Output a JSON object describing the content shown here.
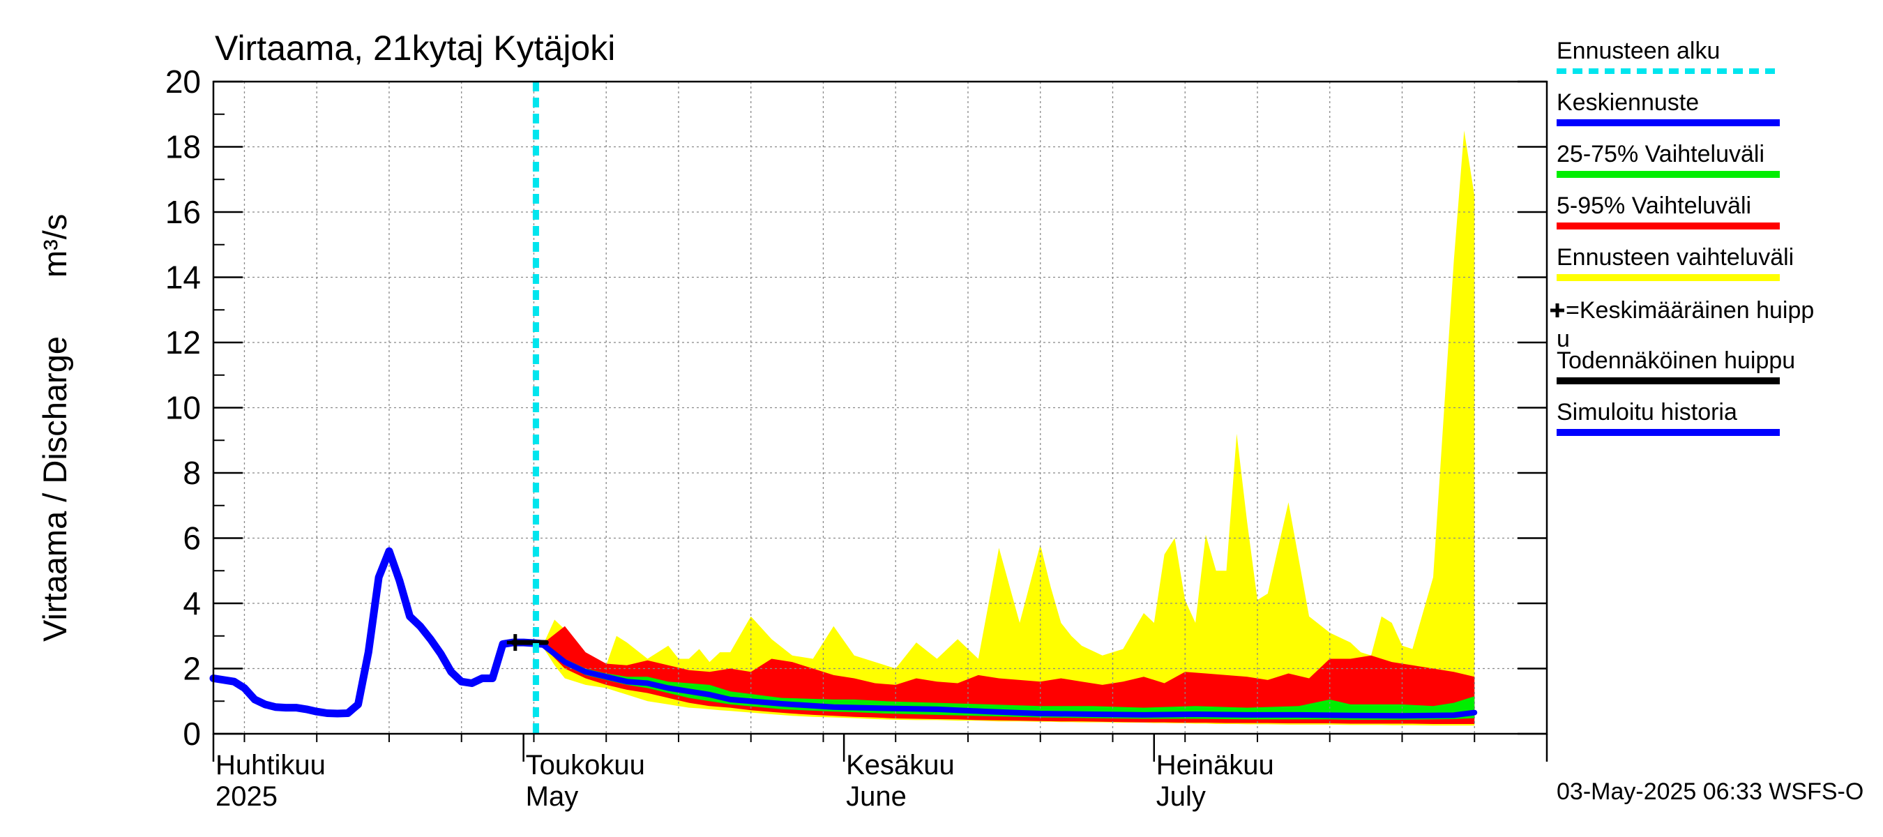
{
  "chart_data": {
    "type": "area",
    "title": "Virtaama, 21kytaj Kytäjoki",
    "ylabel": "Virtaama / Discharge",
    "yunit": "m³/s",
    "ylim": [
      0,
      20
    ],
    "y_ticks": [
      0,
      2,
      4,
      6,
      8,
      10,
      12,
      14,
      16,
      18,
      20
    ],
    "x_start_date": "2025-04-01",
    "x_end_date": "2025-08-08",
    "forecast_start_day": 31.2,
    "month_labels": [
      {
        "fi": "Huhtikuu",
        "en": "2025",
        "day": 0
      },
      {
        "fi": "Toukokuu",
        "en": "May",
        "day": 30
      },
      {
        "fi": "Kesäkuu",
        "en": "June",
        "day": 61
      },
      {
        "fi": "Heinäkuu",
        "en": "July",
        "day": 91
      }
    ],
    "timestamp": "03-May-2025 06:33 WSFS-O",
    "legend": [
      {
        "label": "Ennusteen alku",
        "color": "#00e5ee",
        "style": "dashed"
      },
      {
        "label": "Keskiennuste",
        "color": "#0000ff",
        "style": "line"
      },
      {
        "label": "25-75% Vaihteluväli",
        "color": "#00ee00",
        "style": "line"
      },
      {
        "label": "5-95% Vaihteluväli",
        "color": "#ff0000",
        "style": "line"
      },
      {
        "label": "Ennusteen vaihteluväli",
        "color": "#ffff00",
        "style": "line"
      },
      {
        "label": "=Keskimääräinen huippu",
        "color": "#000000",
        "style": "cross"
      },
      {
        "label": "Todennäköinen huippu",
        "color": "#000000",
        "style": "line"
      },
      {
        "label": "Simuloitu historia",
        "color": "#0000ff",
        "style": "line"
      }
    ],
    "series": [
      {
        "name": "Simuloitu historia",
        "color": "#0000ff",
        "x": [
          0,
          2,
          3,
          4,
          5,
          6,
          7,
          8,
          9,
          10,
          11,
          12,
          13,
          14,
          15,
          16,
          17,
          18,
          19,
          20,
          21,
          22,
          23,
          24,
          25,
          26,
          27,
          28,
          29,
          30,
          31,
          32
        ],
        "y": [
          1.7,
          1.6,
          1.4,
          1.05,
          0.9,
          0.82,
          0.8,
          0.8,
          0.75,
          0.68,
          0.63,
          0.62,
          0.63,
          0.9,
          2.5,
          4.8,
          5.6,
          4.7,
          3.6,
          3.3,
          2.9,
          2.45,
          1.9,
          1.6,
          1.55,
          1.7,
          1.7,
          2.75,
          2.8,
          2.8,
          2.78,
          2.75
        ]
      },
      {
        "name": "Keskiennuste",
        "color": "#0000ff",
        "x": [
          32,
          34,
          36,
          38,
          40,
          42,
          44,
          46,
          48,
          50,
          55,
          60,
          65,
          70,
          75,
          80,
          85,
          90,
          95,
          100,
          105,
          110,
          115,
          120,
          122
        ],
        "y": [
          2.7,
          2.2,
          1.9,
          1.75,
          1.6,
          1.55,
          1.4,
          1.3,
          1.2,
          1.05,
          0.92,
          0.82,
          0.78,
          0.75,
          0.68,
          0.62,
          0.6,
          0.58,
          0.6,
          0.58,
          0.58,
          0.56,
          0.55,
          0.57,
          0.65
        ]
      },
      {
        "name": "Ennusteen vaihteluväli",
        "color": "#ffff00",
        "x": [
          32,
          33,
          34,
          36,
          38,
          39,
          40,
          42,
          44,
          45,
          46,
          47,
          48,
          49,
          50,
          52,
          54,
          56,
          58,
          60,
          62,
          64,
          66,
          68,
          70,
          72,
          74,
          76,
          78,
          80,
          81,
          82,
          83,
          84,
          86,
          88,
          90,
          91,
          92,
          93,
          94,
          95,
          96,
          97,
          98,
          99,
          100,
          101,
          102,
          104,
          106,
          108,
          110,
          111,
          112,
          113,
          114,
          115,
          116,
          118,
          120,
          121,
          122
        ],
        "yhigh": [
          2.8,
          3.5,
          3.2,
          2.4,
          2.1,
          3.0,
          2.8,
          2.3,
          2.7,
          2.3,
          2.3,
          2.6,
          2.2,
          2.5,
          2.5,
          3.6,
          2.9,
          2.4,
          2.3,
          3.3,
          2.4,
          2.2,
          2.0,
          2.8,
          2.3,
          2.9,
          2.3,
          5.7,
          3.4,
          5.8,
          4.5,
          3.4,
          3.0,
          2.7,
          2.4,
          2.6,
          3.7,
          3.4,
          5.5,
          6.0,
          4.1,
          3.4,
          6.1,
          5.0,
          5.0,
          9.2,
          6.5,
          4.1,
          4.3,
          7.1,
          3.6,
          3.1,
          2.8,
          2.5,
          2.4,
          3.6,
          3.4,
          2.7,
          2.6,
          4.8,
          14.5,
          18.5,
          16.5
        ],
        "ylow": [
          2.6,
          2.1,
          1.7,
          1.5,
          1.4,
          1.3,
          1.2,
          1.0,
          0.9,
          0.85,
          0.8,
          0.78,
          0.75,
          0.72,
          0.7,
          0.65,
          0.6,
          0.55,
          0.52,
          0.5,
          0.48,
          0.45,
          0.43,
          0.42,
          0.42,
          0.4,
          0.4,
          0.38,
          0.38,
          0.37,
          0.37,
          0.36,
          0.36,
          0.35,
          0.35,
          0.34,
          0.34,
          0.33,
          0.33,
          0.32,
          0.32,
          0.31,
          0.31,
          0.3,
          0.3,
          0.3,
          0.29,
          0.29,
          0.29,
          0.28,
          0.28,
          0.28,
          0.27,
          0.27,
          0.27,
          0.27,
          0.26,
          0.26,
          0.26,
          0.25,
          0.25,
          0.25,
          0.25
        ]
      },
      {
        "name": "5-95% Vaihteluväli",
        "color": "#ff0000",
        "x": [
          32,
          34,
          36,
          38,
          40,
          42,
          44,
          46,
          48,
          50,
          52,
          54,
          56,
          58,
          60,
          62,
          64,
          66,
          68,
          70,
          72,
          74,
          76,
          78,
          80,
          82,
          84,
          86,
          88,
          90,
          92,
          94,
          96,
          98,
          100,
          102,
          104,
          106,
          108,
          110,
          112,
          114,
          116,
          118,
          120,
          122
        ],
        "yhigh": [
          2.8,
          3.3,
          2.5,
          2.15,
          2.1,
          2.25,
          2.1,
          1.95,
          1.9,
          2.0,
          1.9,
          2.3,
          2.2,
          2.0,
          1.8,
          1.7,
          1.55,
          1.5,
          1.7,
          1.6,
          1.55,
          1.8,
          1.7,
          1.65,
          1.6,
          1.7,
          1.6,
          1.5,
          1.6,
          1.75,
          1.55,
          1.9,
          1.85,
          1.8,
          1.75,
          1.65,
          1.85,
          1.7,
          2.3,
          2.3,
          2.4,
          2.2,
          2.1,
          2.0,
          1.9,
          1.75
        ],
        "ylow": [
          2.65,
          2.0,
          1.7,
          1.5,
          1.35,
          1.25,
          1.1,
          0.95,
          0.85,
          0.8,
          0.72,
          0.67,
          0.62,
          0.58,
          0.55,
          0.52,
          0.5,
          0.47,
          0.46,
          0.45,
          0.44,
          0.42,
          0.41,
          0.4,
          0.39,
          0.38,
          0.38,
          0.37,
          0.36,
          0.35,
          0.35,
          0.34,
          0.34,
          0.33,
          0.33,
          0.33,
          0.32,
          0.32,
          0.32,
          0.31,
          0.31,
          0.31,
          0.31,
          0.3,
          0.3,
          0.3
        ]
      },
      {
        "name": "25-75% Vaihteluväli",
        "color": "#00ee00",
        "x": [
          32,
          34,
          36,
          38,
          40,
          42,
          44,
          46,
          48,
          50,
          55,
          60,
          62,
          65,
          70,
          75,
          80,
          85,
          90,
          95,
          100,
          105,
          108,
          110,
          115,
          118,
          120,
          122
        ],
        "yhigh": [
          2.75,
          2.3,
          2.0,
          1.85,
          1.75,
          1.75,
          1.6,
          1.55,
          1.5,
          1.3,
          1.1,
          1.05,
          1.05,
          1.0,
          0.95,
          0.9,
          0.85,
          0.85,
          0.8,
          0.85,
          0.8,
          0.85,
          1.05,
          0.9,
          0.9,
          0.85,
          0.95,
          1.15
        ],
        "ylow": [
          2.65,
          2.1,
          1.8,
          1.65,
          1.5,
          1.4,
          1.25,
          1.1,
          1.0,
          0.9,
          0.75,
          0.68,
          0.66,
          0.62,
          0.58,
          0.54,
          0.5,
          0.48,
          0.46,
          0.46,
          0.44,
          0.44,
          0.44,
          0.43,
          0.43,
          0.44,
          0.45,
          0.48
        ]
      },
      {
        "name": "Todennäköinen huippu",
        "color": "#000000",
        "x": [
          29,
          32.2
        ],
        "y": [
          2.8,
          2.8
        ]
      }
    ],
    "mean_peak": {
      "x": 29.2,
      "y": 2.8
    }
  }
}
